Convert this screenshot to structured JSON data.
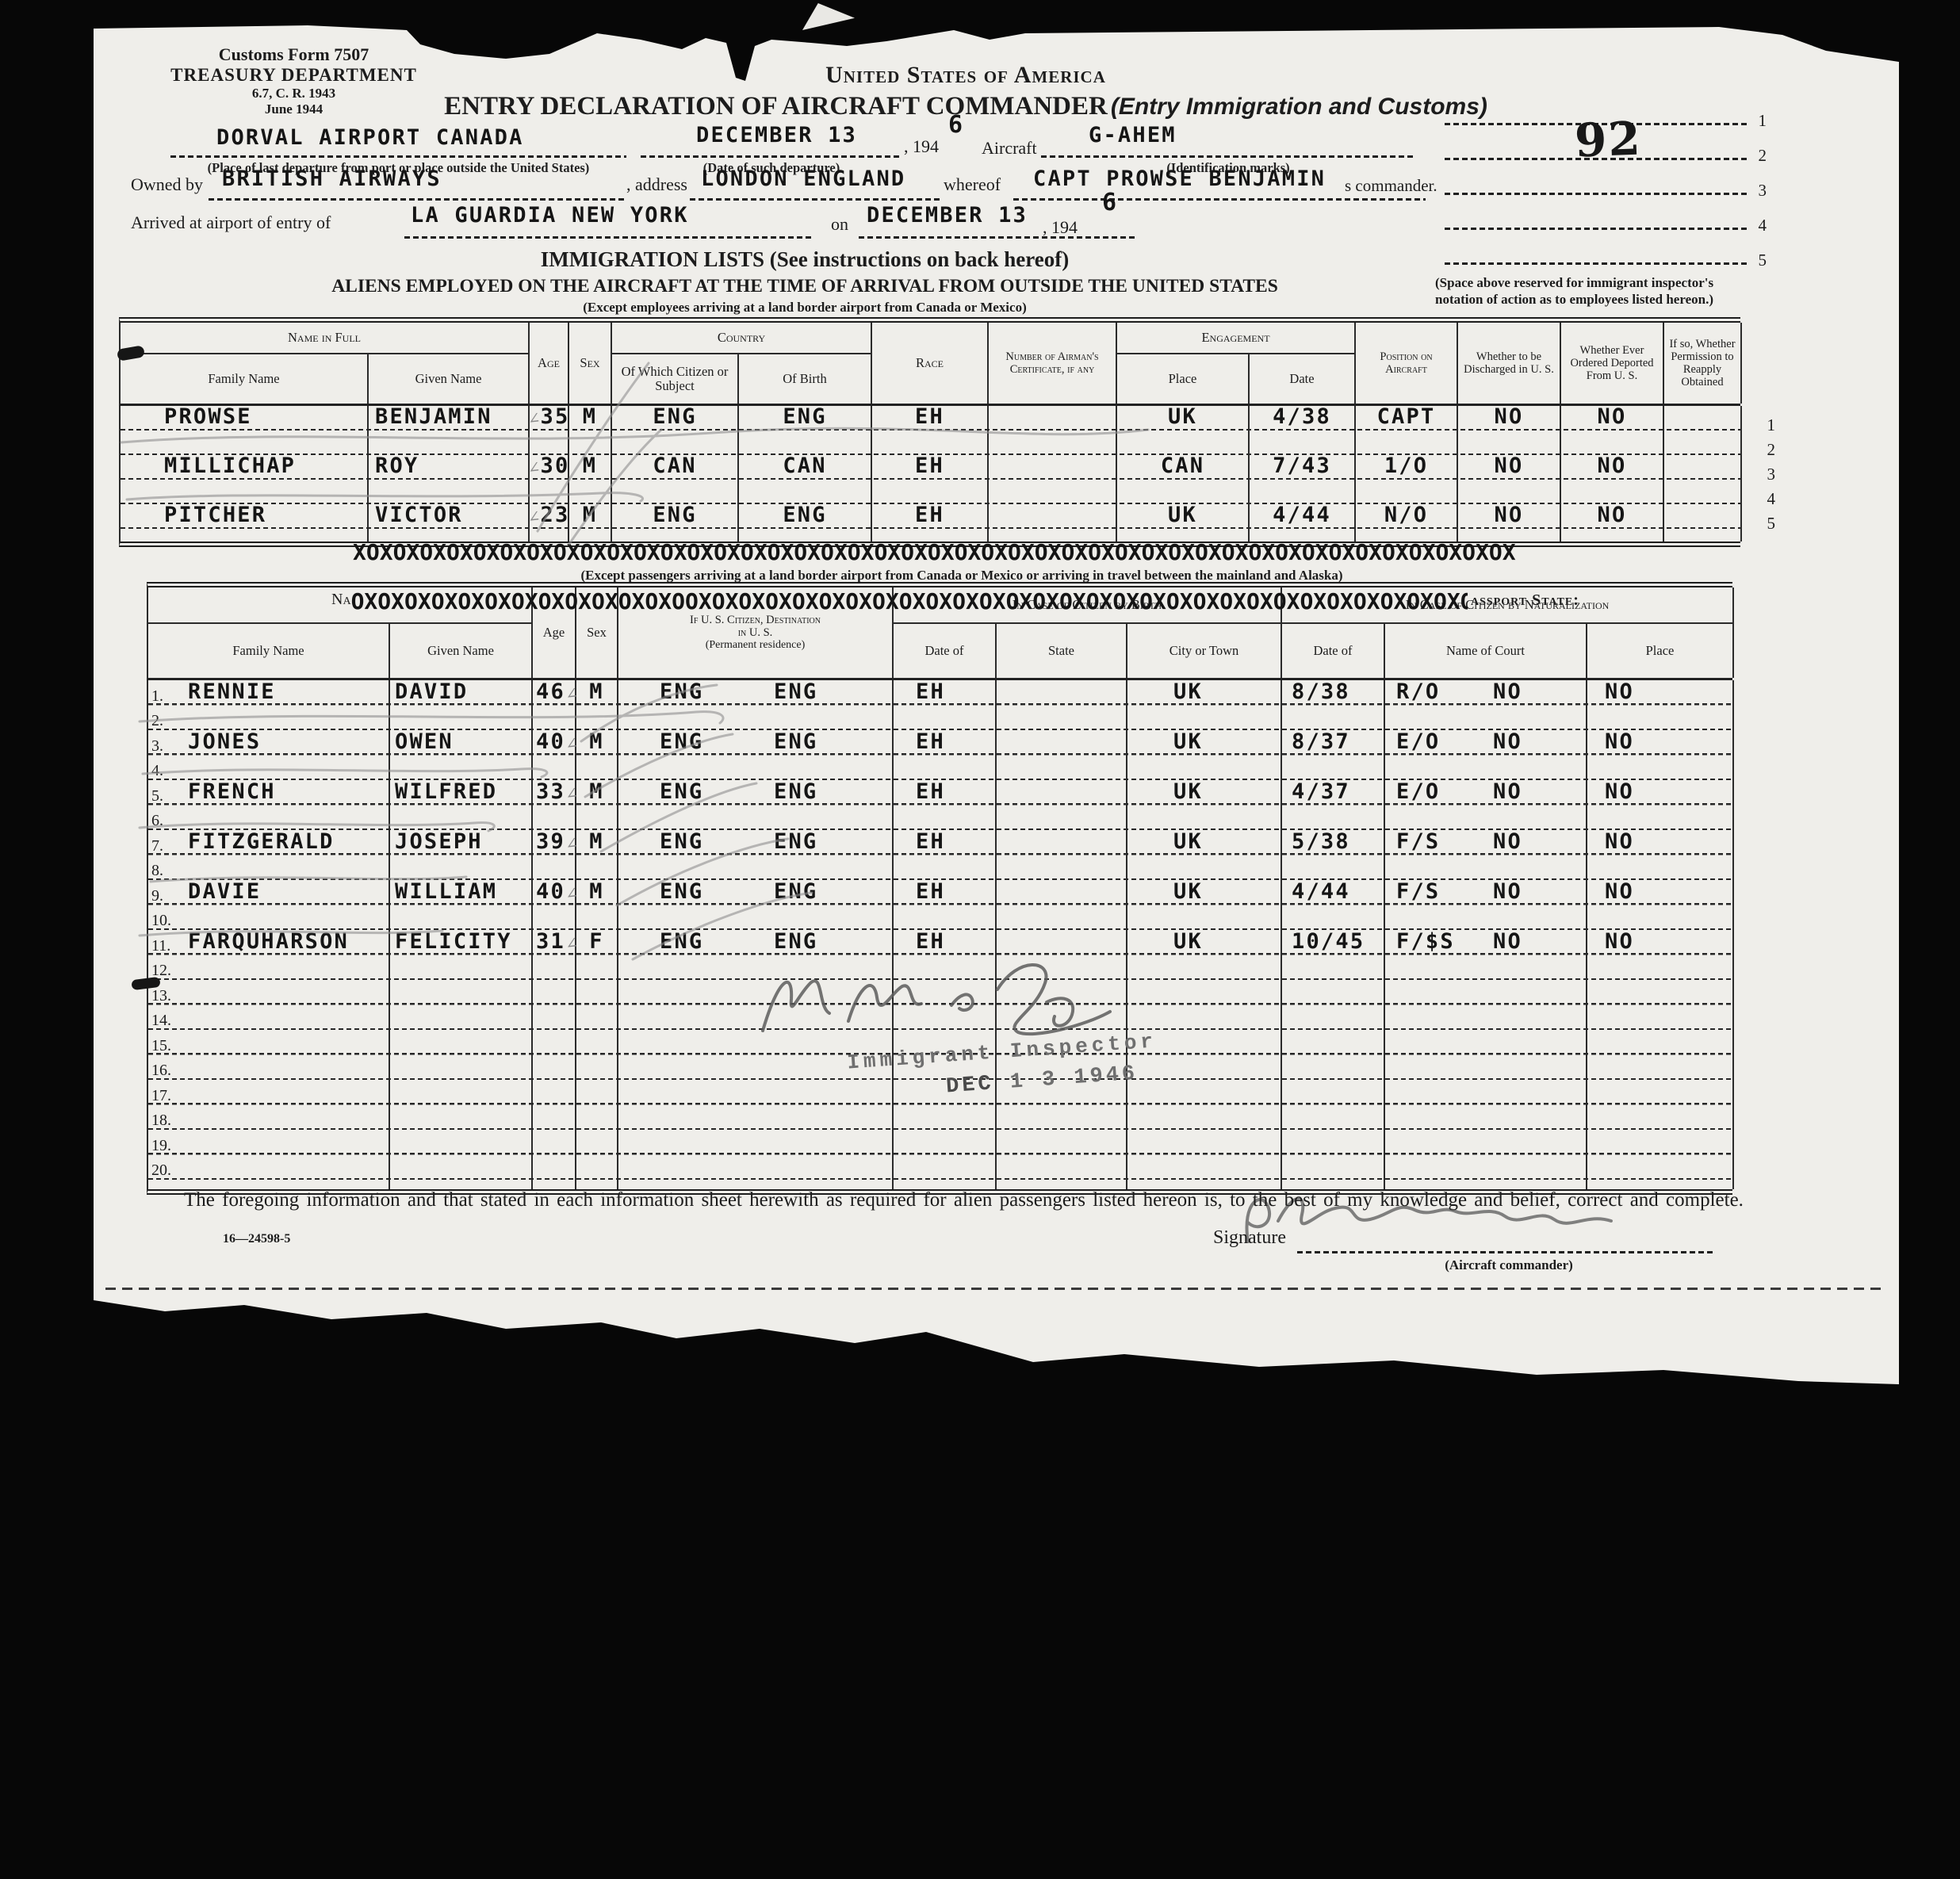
{
  "form_id": {
    "line1": "Customs Form 7507",
    "line2": "TREASURY DEPARTMENT",
    "line3": "6.7, C. R. 1943",
    "line4": "June 1944"
  },
  "title": {
    "country": "United States of America",
    "main": "ENTRY DECLARATION OF AIRCRAFT COMMANDER",
    "main_suffix": "(Entry Immigration and Customs)"
  },
  "header_fields": {
    "departure_place": "DORVAL AIRPORT CANADA",
    "departure_place_caption": "(Place of last departure from port or place outside the United States)",
    "departure_date": "DECEMBER 13",
    "year_printed": ", 194",
    "year_typed": "6",
    "departure_date_caption": "(Date of such departure)",
    "aircraft_label": "Aircraft",
    "aircraft_id": "G-AHEM",
    "aircraft_caption": "(Identification marks)",
    "owned_by_label": "Owned by",
    "owner": "BRITISH AIRWAYS",
    "address_label": ", address",
    "address": "LONDON ENGLAND",
    "whereof_label": "whereof",
    "commander": "CAPT PROWSE BENJAMIN",
    "commander_suffix": "s commander.",
    "arrival_label": "Arrived at airport of entry of",
    "arrival_airport": "LA GUARDIA NEW YORK",
    "on_label": "on",
    "arrival_date": "DECEMBER 13",
    "arrival_year_printed": ", 194",
    "arrival_year_typed": "6"
  },
  "inspector_box": {
    "page_number": "92",
    "line_numbers": [
      "1",
      "2",
      "3",
      "4",
      "5"
    ],
    "caption_line1": "(Space above reserved for immigrant inspector's",
    "caption_line2": "notation of action as to employees listed hereon.)"
  },
  "section1": {
    "title": "IMMIGRATION LISTS  (See instructions on back hereof)",
    "subtitle": "ALIENS EMPLOYED ON THE AIRCRAFT AT THE TIME OF ARRIVAL FROM OUTSIDE THE UNITED STATES",
    "exception": "(Except employees arriving at a land border airport from Canada or Mexico)"
  },
  "crew_table": {
    "headers": {
      "name_group": "Name in Full",
      "family": "Family Name",
      "given": "Given Name",
      "age": "Age",
      "sex": "Sex",
      "country_group": "Country",
      "citizen_of": "Of Which Citizen or Subject",
      "birth": "Of Birth",
      "race": "Race",
      "certificate": "Number of Airman's Certificate, if any",
      "engagement_group": "Engagement",
      "place": "Place",
      "date": "Date",
      "position": "Position on Aircraft",
      "discharged": "Whether to be Discharged in U. S.",
      "deported": "Whether Ever Ordered Deported From U. S.",
      "reapply": "If so, Whether Permission to Reapply Obtained"
    },
    "lines": [
      {
        "num": "1",
        "data": {
          "family": "PROWSE",
          "given": "BENJAMIN",
          "age": "35",
          "sex": "M",
          "citizen_of": "ENG",
          "birth": "ENG",
          "race": "EH",
          "place": "UK",
          "date": "4/38",
          "position": "CAPT",
          "discharged": "NO",
          "deported": "NO"
        }
      },
      {
        "num": "2"
      },
      {
        "num": "3",
        "data": {
          "family": "MILLICHAP",
          "given": "ROY",
          "age": "30",
          "sex": "M",
          "citizen_of": "CAN",
          "birth": "CAN",
          "race": "EH",
          "place": "CAN",
          "date": "7/43",
          "position": "1/O",
          "discharged": "NO",
          "deported": "NO"
        }
      },
      {
        "num": "4"
      },
      {
        "num": "5",
        "data": {
          "family": "PITCHER",
          "given": "VICTOR",
          "age": "23",
          "sex": "M",
          "citizen_of": "ENG",
          "birth": "ENG",
          "race": "EH",
          "place": "UK",
          "date": "4/44",
          "position": "N/O",
          "discharged": "NO",
          "deported": "NO"
        }
      }
    ]
  },
  "section2": {
    "xline1": "XOXOXOXOXOXOXOXOXOXOXOXOXOXOXOXOXOXOXOXOXOXOXOXOXOXOXOXOXOXOXOXOXOXOXOXOXOXOXOXOXOXOXOX",
    "exception": "(Except passengers arriving at a land border airport from Canada or Mexico or arriving in travel between the mainland and Alaska)",
    "xline2_prefix": "Na",
    "xline2": "OXOXOXOXOXOXOXOXOXOXOXOXOOXOXOXOXOXOXOXOXOXOXOXOXOXOXOXOXOXOXOXOXOXOXOXOXOXOXOXOXOXOX",
    "passport_state": "assport State:"
  },
  "passenger_table": {
    "headers": {
      "family": "Family Name",
      "given": "Given Name",
      "age": "Age",
      "sex": "Sex",
      "destination_line1": "If U. S. Citizen, Destination",
      "destination_line2": "in U. S.",
      "destination_line3": "(Permanent residence)",
      "birth_group": "In Case of Citizen by Birth",
      "birth_date": "Date of",
      "birth_state": "State",
      "birth_city": "City or Town",
      "nat_group": "In Case of Citizen by Naturalization",
      "nat_date": "Date of",
      "nat_court": "Name of Court",
      "nat_place": "Place"
    },
    "lines": [
      {
        "num": "1.",
        "data": {
          "family": "RENNIE",
          "given": "DAVID",
          "age": "46",
          "sex": "M",
          "citizen_of": "ENG",
          "birth": "ENG",
          "race": "EH",
          "place": "UK",
          "date": "8/38",
          "position": "R/O",
          "discharged": "NO",
          "deported": "NO"
        }
      },
      {
        "num": "2."
      },
      {
        "num": "3.",
        "data": {
          "family": "JONES",
          "given": "OWEN",
          "age": "40",
          "sex": "M",
          "citizen_of": "ENG",
          "birth": "ENG",
          "race": "EH",
          "place": "UK",
          "date": "8/37",
          "position": "E/O",
          "discharged": "NO",
          "deported": "NO"
        }
      },
      {
        "num": "4."
      },
      {
        "num": "5.",
        "data": {
          "family": "FRENCH",
          "given": "WILFRED",
          "age": "33",
          "sex": "M",
          "citizen_of": "ENG",
          "birth": "ENG",
          "race": "EH",
          "place": "UK",
          "date": "4/37",
          "position": "E/O",
          "discharged": "NO",
          "deported": "NO"
        }
      },
      {
        "num": "6."
      },
      {
        "num": "7.",
        "data": {
          "family": "FITZGERALD",
          "given": "JOSEPH",
          "age": "39",
          "sex": "M",
          "citizen_of": "ENG",
          "birth": "ENG",
          "race": "EH",
          "place": "UK",
          "date": "5/38",
          "position": "F/S",
          "discharged": "NO",
          "deported": "NO"
        }
      },
      {
        "num": "8."
      },
      {
        "num": "9.",
        "data": {
          "family": "DAVIE",
          "given": "WILLIAM",
          "age": "40",
          "sex": "M",
          "citizen_of": "ENG",
          "birth": "ENG",
          "race": "EH",
          "place": "UK",
          "date": "4/44",
          "position": "F/S",
          "discharged": "NO",
          "deported": "NO"
        }
      },
      {
        "num": "10."
      },
      {
        "num": "11.",
        "data": {
          "family": "FARQUHARSON",
          "given": "FELICITY",
          "age": "31",
          "sex": "F",
          "citizen_of": "ENG",
          "birth": "ENG",
          "race": "EH",
          "place": "UK",
          "date": "10/45",
          "position": "F/$S",
          "discharged": "NO",
          "deported": "NO"
        }
      },
      {
        "num": "12."
      },
      {
        "num": "13."
      },
      {
        "num": "14."
      },
      {
        "num": "15."
      },
      {
        "num": "16."
      },
      {
        "num": "17."
      },
      {
        "num": "18."
      },
      {
        "num": "19."
      },
      {
        "num": "20."
      }
    ]
  },
  "stamp": {
    "line1": "Immigrant Inspector",
    "date_bold": "DEC",
    "date_rest": "1 3 1946"
  },
  "footer": {
    "declaration": "The foregoing information and that stated in each information sheet herewith as required for alien passengers listed hereon is, to the best of my knowledge and belief, correct and complete.",
    "print_code": "16—24598-5",
    "signature_label": "Signature",
    "signature_caption": "(Aircraft commander)"
  },
  "marks": {
    "tick": "∠"
  }
}
